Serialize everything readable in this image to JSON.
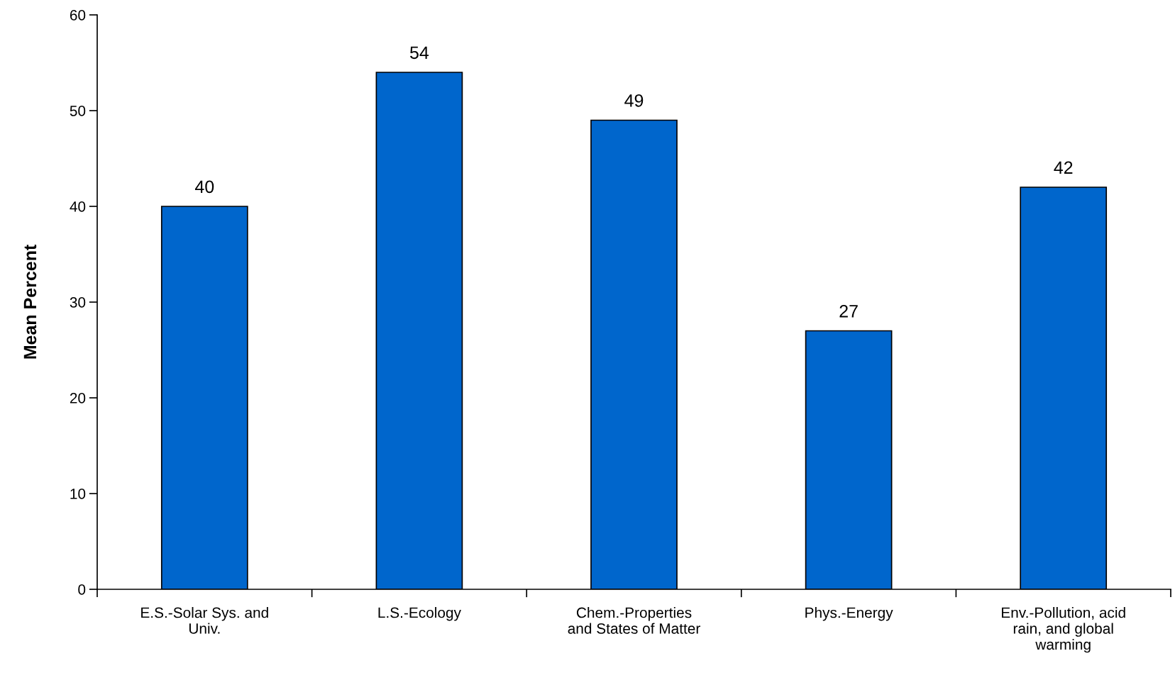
{
  "chart_data": {
    "type": "bar",
    "ylabel": "Mean Percent",
    "categories": [
      "E.S.-Solar Sys. and\nUniv.",
      "L.S.-Ecology",
      "Chem.-Properties\nand States of Matter",
      "Phys.-Energy",
      "Env.-Pollution, acid\nrain, and global\nwarming"
    ],
    "values": [
      40,
      54,
      49,
      27,
      42
    ],
    "color": "#0066cc",
    "ylim": [
      0,
      60
    ],
    "yticks": [
      0,
      10,
      20,
      30,
      40,
      50,
      60
    ],
    "data_labels": true,
    "grid": false,
    "legend": false
  }
}
